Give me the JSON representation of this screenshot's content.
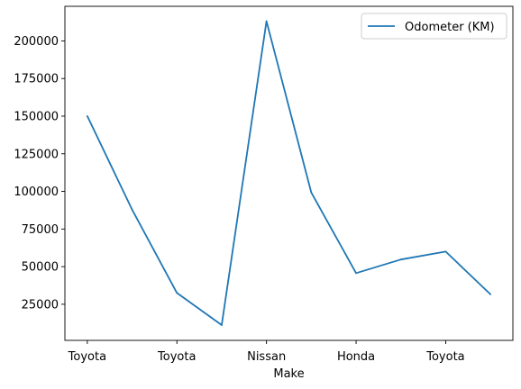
{
  "chart_data": {
    "type": "line",
    "title": "",
    "xlabel": "Make",
    "ylabel": "",
    "x_index": [
      0,
      1,
      2,
      3,
      4,
      5,
      6,
      7,
      8,
      9
    ],
    "x_tick_positions": [
      0,
      2,
      4,
      6,
      8
    ],
    "x_tick_labels": [
      "Toyota",
      "Toyota",
      "Nissan",
      "Honda",
      "Toyota"
    ],
    "xlim": [
      -0.5,
      9.5
    ],
    "ylim": [
      1000,
      223000
    ],
    "y_ticks": [
      25000,
      50000,
      75000,
      100000,
      125000,
      150000,
      175000,
      200000
    ],
    "y_tick_labels": [
      "25000",
      "50000",
      "75000",
      "100000",
      "125000",
      "150000",
      "175000",
      "200000"
    ],
    "series": [
      {
        "name": "Odometer (KM)",
        "color": "#1f77b4",
        "values": [
          150043,
          87899,
          32549,
          11179,
          213095,
          99213,
          45698,
          54738,
          60000,
          31600
        ]
      }
    ],
    "legend": {
      "position": "top-right"
    },
    "grid": false
  }
}
